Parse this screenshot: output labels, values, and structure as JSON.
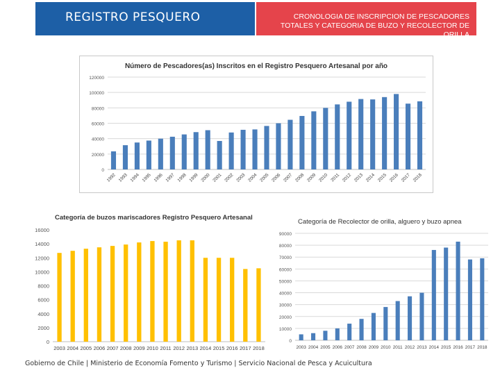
{
  "header": {
    "title_left": "REGISTRO PESQUERO",
    "title_right": "CRONOLOGIA DE INSCRIPCION DE PESCADORES TOTALES Y CATEGORIA DE BUZO Y RECOLECTOR DE ORILLA",
    "color_left": "#1d5fa6",
    "color_right": "#e5444b"
  },
  "footer": "Gobierno de Chile | Ministerio de Economía Fomento y Turismo | Servicio Nacional de Pesca y Acuicultura",
  "chart_data": [
    {
      "type": "bar",
      "title": "Número de Pescadores(as) Inscritos en el Registro Pesquero Artesanal por año",
      "categories": [
        "1992",
        "1993",
        "1994",
        "1995",
        "1996",
        "1997",
        "1998",
        "1999",
        "2000",
        "2001",
        "2002",
        "2003",
        "2004",
        "2005",
        "2006",
        "2007",
        "2008",
        "2009",
        "2010",
        "2011",
        "2012",
        "2013",
        "2014",
        "2015",
        "2016",
        "2017",
        "2018"
      ],
      "values": [
        23500,
        31500,
        35000,
        37500,
        40000,
        42500,
        45500,
        48500,
        51000,
        37000,
        48000,
        51500,
        52000,
        56500,
        60000,
        64500,
        69500,
        75500,
        80000,
        84500,
        88000,
        91500,
        91000,
        94000,
        98000,
        85500,
        88500
      ],
      "yticks": [
        "120000",
        "100000",
        "80000",
        "60000",
        "40000",
        "20000",
        "0"
      ],
      "ylim": [
        0,
        120000
      ],
      "color": "#4a7ebb"
    },
    {
      "type": "bar",
      "title": "Categoría de buzos mariscadores Registro Pesquero Artesanal",
      "categories": [
        "2003",
        "2004",
        "2005",
        "2006",
        "2007",
        "2008",
        "2009",
        "2010",
        "2011",
        "2012",
        "2013",
        "2014",
        "2015",
        "2016",
        "2017",
        "2018"
      ],
      "values": [
        12700,
        13000,
        13300,
        13500,
        13700,
        13900,
        14200,
        14400,
        14300,
        14500,
        14500,
        12000,
        12000,
        12000,
        10400,
        10500
      ],
      "yticks": [
        "16000",
        "14000",
        "12000",
        "10000",
        "8000",
        "6000",
        "4000",
        "2000",
        "0"
      ],
      "ylim": [
        0,
        16000
      ],
      "color": "#ffc000"
    },
    {
      "type": "bar",
      "title": "Categoría de Recolector de orilla, alguero y buzo apnea",
      "categories": [
        "2003",
        "2004",
        "2005",
        "2006",
        "2007",
        "2008",
        "2009",
        "2010",
        "2011",
        "2012",
        "2013",
        "2014",
        "2015",
        "2016",
        "2017",
        "2018"
      ],
      "values": [
        5000,
        6000,
        8000,
        10000,
        14000,
        18000,
        23000,
        28000,
        33000,
        37000,
        40000,
        76000,
        78000,
        83000,
        68000,
        69000
      ],
      "yticks": [
        "90000",
        "80000",
        "70000",
        "60000",
        "50000",
        "40000",
        "30000",
        "20000",
        "10000",
        "0"
      ],
      "ylim": [
        0,
        90000
      ],
      "color": "#4a7ebb"
    }
  ]
}
